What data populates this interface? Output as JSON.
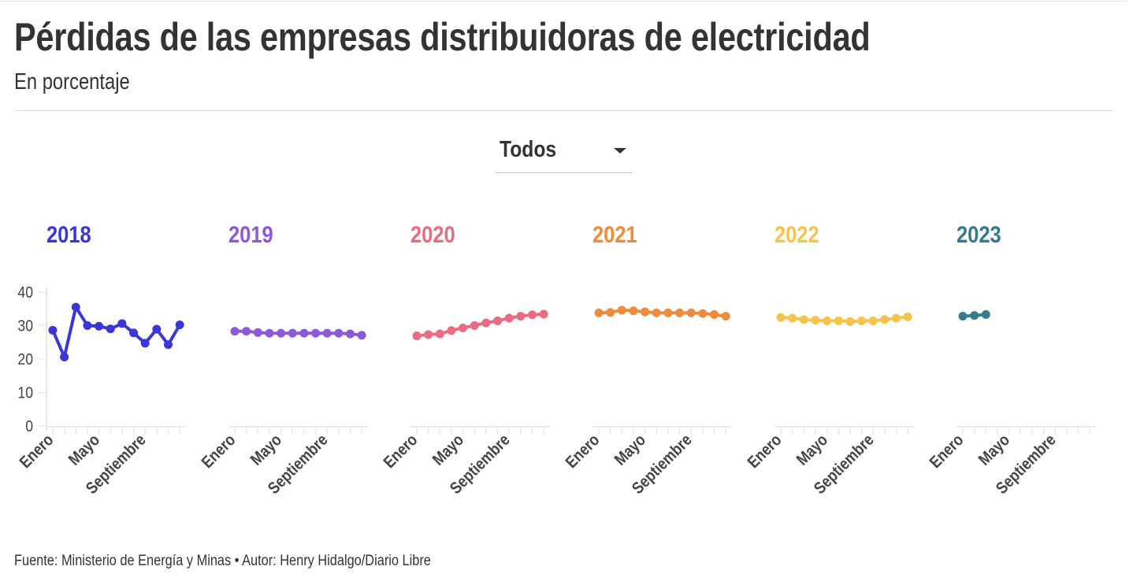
{
  "header": {
    "title": "Pérdidas de las empresas distribuidoras de electricidad",
    "subtitle": "En porcentaje"
  },
  "filter": {
    "selected": "Todos",
    "icon": "caret-down-icon"
  },
  "footer": {
    "text": "Fuente: Ministerio de Energía y Minas • Autor: Henry Hidalgo/Diario Libre"
  },
  "chart_data": {
    "type": "line",
    "title": "Pérdidas de las empresas distribuidoras de electricidad",
    "subtitle": "En porcentaje",
    "xlabel": "",
    "ylabel": "",
    "ylim": [
      0,
      40
    ],
    "yticks": [
      0,
      10,
      20,
      30,
      40
    ],
    "xtick_labels": [
      "Enero",
      "Mayo",
      "Septiembre"
    ],
    "xtick_label_months": [
      1,
      5,
      9
    ],
    "months": 12,
    "grid": false,
    "legend": "none",
    "series": [
      {
        "name": "2018",
        "color": "#3b36d9",
        "values": [
          28.6,
          20.6,
          35.5,
          30.0,
          29.8,
          29.0,
          30.6,
          27.8,
          24.7,
          28.9,
          24.3,
          30.2
        ]
      },
      {
        "name": "2019",
        "color": "#8a5ad8",
        "values": [
          28.3,
          28.3,
          27.9,
          27.7,
          27.7,
          27.7,
          27.7,
          27.7,
          27.7,
          27.7,
          27.5,
          27.1
        ]
      },
      {
        "name": "2020",
        "color": "#ea6b82",
        "values": [
          26.9,
          27.3,
          27.5,
          28.5,
          29.3,
          30.0,
          30.8,
          31.4,
          32.2,
          32.8,
          33.2,
          33.4
        ]
      },
      {
        "name": "2021",
        "color": "#ef8c3b",
        "values": [
          33.8,
          33.9,
          34.6,
          34.4,
          34.1,
          33.8,
          33.8,
          33.8,
          33.8,
          33.6,
          33.3,
          32.8
        ]
      },
      {
        "name": "2022",
        "color": "#f6c44b",
        "values": [
          32.4,
          32.2,
          31.8,
          31.6,
          31.4,
          31.4,
          31.2,
          31.4,
          31.4,
          31.8,
          32.2,
          32.6
        ]
      },
      {
        "name": "2023",
        "color": "#367b8b",
        "values": [
          32.8,
          33.0,
          33.3
        ]
      }
    ]
  }
}
